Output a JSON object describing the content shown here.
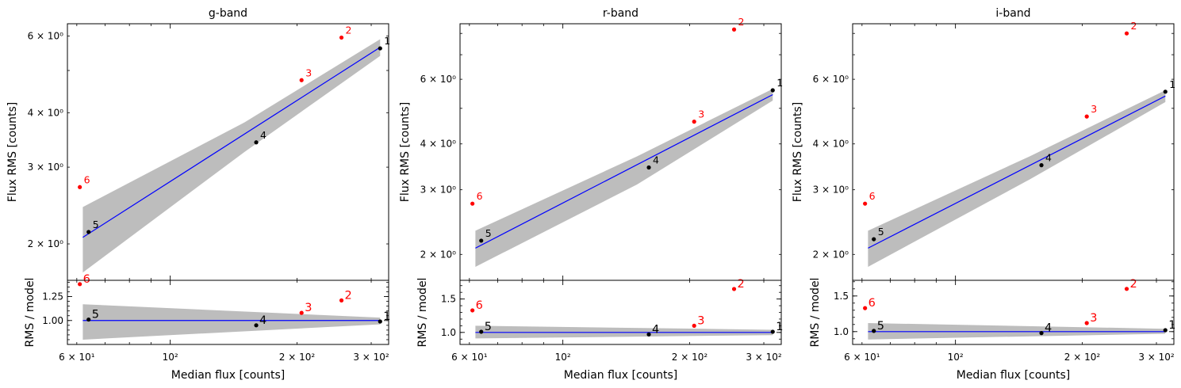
{
  "chart_data": [
    {
      "type": "scatter",
      "title": "g-band",
      "xlabel": "Median flux [counts]",
      "ylabel_top": "Flux RMS [counts]",
      "ylabel_bottom": "RMS / model",
      "xscale": "log",
      "yscale_top": "log",
      "xlim": [
        57,
        330
      ],
      "ylim_top": [
        1.65,
        6.4
      ],
      "ylim_bottom": [
        0.75,
        1.42
      ],
      "xticks": [
        {
          "value": 60,
          "label": "6 × 10¹"
        },
        {
          "value": 100,
          "label": "10²"
        },
        {
          "value": 200,
          "label": "2 × 10²"
        },
        {
          "value": 300,
          "label": "3 × 10²"
        }
      ],
      "yticks_top": [
        {
          "value": 2,
          "label": "2 × 10⁰"
        },
        {
          "value": 3,
          "label": "3 × 10⁰"
        },
        {
          "value": 4,
          "label": "4 × 10⁰"
        },
        {
          "value": 6,
          "label": "6 × 10⁰"
        }
      ],
      "yticks_bottom": [
        {
          "value": 1.0,
          "label": "1.00"
        },
        {
          "value": 1.25,
          "label": "1.25"
        }
      ],
      "points": [
        {
          "label": "1",
          "x": 315,
          "y": 5.62,
          "ratio": 0.99,
          "color": "#000000"
        },
        {
          "label": "2",
          "x": 255,
          "y": 5.95,
          "ratio": 1.21,
          "color": "#ff0000"
        },
        {
          "label": "3",
          "x": 205,
          "y": 4.75,
          "ratio": 1.08,
          "color": "#ff0000"
        },
        {
          "label": "4",
          "x": 160,
          "y": 3.42,
          "ratio": 0.95,
          "color": "#000000"
        },
        {
          "label": "5",
          "x": 64,
          "y": 2.13,
          "ratio": 1.01,
          "color": "#000000"
        },
        {
          "label": "6",
          "x": 61,
          "y": 2.7,
          "ratio": 1.38,
          "color": "#ff0000"
        }
      ],
      "fit": {
        "x": [
          62,
          315
        ],
        "y": [
          2.07,
          5.65
        ],
        "color": "#0000ff"
      },
      "band": {
        "x": [
          62,
          150,
          315
        ],
        "lower": [
          1.72,
          3.25,
          5.4
        ],
        "upper": [
          2.43,
          3.8,
          5.9
        ]
      },
      "band_ratio": {
        "x": [
          62,
          315
        ],
        "lower": [
          0.8,
          0.96
        ],
        "upper": [
          1.17,
          1.03
        ]
      }
    },
    {
      "type": "scatter",
      "title": "r-band",
      "xlabel": "Median flux [counts]",
      "ylabel_top": "Flux RMS [counts]",
      "ylabel_bottom": "RMS / model",
      "xscale": "log",
      "yscale_top": "log",
      "xlim": [
        57,
        330
      ],
      "ylim_top": [
        1.7,
        8.5
      ],
      "ylim_bottom": [
        0.82,
        1.78
      ],
      "xticks": [
        {
          "value": 60,
          "label": "6 × 10¹"
        },
        {
          "value": 100,
          "label": "10²"
        },
        {
          "value": 200,
          "label": "2 × 10²"
        },
        {
          "value": 300,
          "label": "3 × 10²"
        }
      ],
      "yticks_top": [
        {
          "value": 2,
          "label": "2 × 10⁰"
        },
        {
          "value": 3,
          "label": "3 × 10⁰"
        },
        {
          "value": 4,
          "label": "4 × 10⁰"
        },
        {
          "value": 6,
          "label": "6 × 10⁰"
        }
      ],
      "yticks_bottom": [
        {
          "value": 1.0,
          "label": "1.0"
        },
        {
          "value": 1.5,
          "label": "1.5"
        }
      ],
      "points": [
        {
          "label": "1",
          "x": 315,
          "y": 5.6,
          "ratio": 1.01,
          "color": "#000000"
        },
        {
          "label": "2",
          "x": 255,
          "y": 8.2,
          "ratio": 1.65,
          "color": "#ff0000"
        },
        {
          "label": "3",
          "x": 205,
          "y": 4.6,
          "ratio": 1.1,
          "color": "#ff0000"
        },
        {
          "label": "4",
          "x": 160,
          "y": 3.45,
          "ratio": 0.97,
          "color": "#000000"
        },
        {
          "label": "5",
          "x": 64,
          "y": 2.18,
          "ratio": 1.01,
          "color": "#000000"
        },
        {
          "label": "6",
          "x": 61,
          "y": 2.75,
          "ratio": 1.33,
          "color": "#ff0000"
        }
      ],
      "fit": {
        "x": [
          62,
          315
        ],
        "y": [
          2.08,
          5.45
        ],
        "color": "#0000ff"
      },
      "band": {
        "x": [
          62,
          150,
          315
        ],
        "lower": [
          1.85,
          3.1,
          5.25
        ],
        "upper": [
          2.32,
          3.7,
          5.65
        ]
      },
      "band_ratio": {
        "x": [
          62,
          315
        ],
        "lower": [
          0.91,
          0.96
        ],
        "upper": [
          1.1,
          1.04
        ]
      }
    },
    {
      "type": "scatter",
      "title": "i-band",
      "xlabel": "Median flux [counts]",
      "ylabel_top": "Flux RMS [counts]",
      "ylabel_bottom": "RMS / model",
      "xscale": "log",
      "yscale_top": "log",
      "xlim": [
        57,
        330
      ],
      "ylim_top": [
        1.7,
        8.5
      ],
      "ylim_bottom": [
        0.82,
        1.72
      ],
      "xticks": [
        {
          "value": 60,
          "label": "6 × 10¹"
        },
        {
          "value": 100,
          "label": "10²"
        },
        {
          "value": 200,
          "label": "2 × 10²"
        },
        {
          "value": 300,
          "label": "3 × 10²"
        }
      ],
      "yticks_top": [
        {
          "value": 2,
          "label": "2 × 10⁰"
        },
        {
          "value": 3,
          "label": "3 × 10⁰"
        },
        {
          "value": 4,
          "label": "4 × 10⁰"
        },
        {
          "value": 6,
          "label": "6 × 10⁰"
        }
      ],
      "yticks_bottom": [
        {
          "value": 1.0,
          "label": "1.0"
        },
        {
          "value": 1.5,
          "label": "1.5"
        }
      ],
      "points": [
        {
          "label": "1",
          "x": 315,
          "y": 5.55,
          "ratio": 1.02,
          "color": "#000000"
        },
        {
          "label": "2",
          "x": 255,
          "y": 8.0,
          "ratio": 1.6,
          "color": "#ff0000"
        },
        {
          "label": "3",
          "x": 205,
          "y": 4.75,
          "ratio": 1.12,
          "color": "#ff0000"
        },
        {
          "label": "4",
          "x": 160,
          "y": 3.5,
          "ratio": 0.98,
          "color": "#000000"
        },
        {
          "label": "5",
          "x": 64,
          "y": 2.2,
          "ratio": 1.01,
          "color": "#000000"
        },
        {
          "label": "6",
          "x": 61,
          "y": 2.75,
          "ratio": 1.33,
          "color": "#ff0000"
        }
      ],
      "fit": {
        "x": [
          62,
          315
        ],
        "y": [
          2.08,
          5.4
        ],
        "color": "#0000ff"
      },
      "band": {
        "x": [
          62,
          150,
          315
        ],
        "lower": [
          1.85,
          3.2,
          5.2
        ],
        "upper": [
          2.32,
          3.7,
          5.6
        ]
      },
      "band_ratio": {
        "x": [
          62,
          315
        ],
        "lower": [
          0.89,
          0.97
        ],
        "upper": [
          1.12,
          1.04
        ]
      }
    }
  ]
}
